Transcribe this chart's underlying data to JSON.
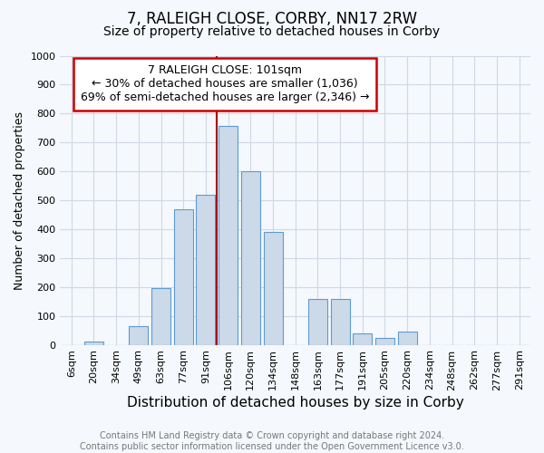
{
  "title_line1": "7, RALEIGH CLOSE, CORBY, NN17 2RW",
  "title_line2": "Size of property relative to detached houses in Corby",
  "xlabel": "Distribution of detached houses by size in Corby",
  "ylabel": "Number of detached properties",
  "categories": [
    "6sqm",
    "20sqm",
    "34sqm",
    "49sqm",
    "63sqm",
    "77sqm",
    "91sqm",
    "106sqm",
    "120sqm",
    "134sqm",
    "148sqm",
    "163sqm",
    "177sqm",
    "191sqm",
    "205sqm",
    "220sqm",
    "234sqm",
    "248sqm",
    "262sqm",
    "277sqm",
    "291sqm"
  ],
  "values": [
    0,
    12,
    0,
    63,
    195,
    468,
    520,
    757,
    600,
    390,
    0,
    160,
    160,
    40,
    25,
    45,
    0,
    0,
    0,
    0,
    0
  ],
  "bar_color": "#ccd9e8",
  "bar_edge_color": "#5b9bd5",
  "bar_edge_width": 0.8,
  "bar_width": 0.85,
  "vline_color": "#aa0000",
  "vline_pos": 6.5,
  "annotation_text": "7 RALEIGH CLOSE: 101sqm\n← 30% of detached houses are smaller (1,036)\n69% of semi-detached houses are larger (2,346) →",
  "annotation_box_facecolor": "#ffffff",
  "annotation_box_edgecolor": "#cc0000",
  "ylim": [
    0,
    1000
  ],
  "yticks": [
    0,
    100,
    200,
    300,
    400,
    500,
    600,
    700,
    800,
    900,
    1000
  ],
  "footer_text": "Contains HM Land Registry data © Crown copyright and database right 2024.\nContains public sector information licensed under the Open Government Licence v3.0.",
  "background_color": "#f5f8fc",
  "grid_color": "#d0d8e4",
  "title1_fontsize": 12,
  "title2_fontsize": 10,
  "xlabel_fontsize": 11,
  "ylabel_fontsize": 9,
  "tick_fontsize": 8,
  "footer_fontsize": 7,
  "annotation_fontsize": 9
}
